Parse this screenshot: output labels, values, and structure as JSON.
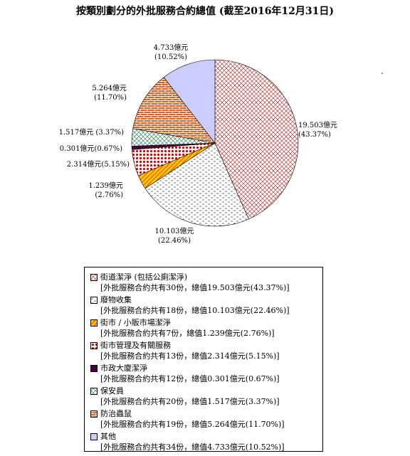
{
  "chart_data": {
    "type": "pie",
    "title": "按類別劃分的外批服務合約總值 (截至2016年12月31日)",
    "slices": [
      {
        "name": "街道潔淨 (包括公廁潔淨)",
        "value": 19.503,
        "percent": 43.37,
        "label_value": "19.503億元",
        "label_percent": "(43.37%)",
        "detail": "[外批服務合約共有30份，總值19.503億元(43.37%)]",
        "fill": "#ffffff",
        "stroke": "#c04040",
        "pattern": "crosshatch"
      },
      {
        "name": "廢物收集",
        "value": 10.103,
        "percent": 22.46,
        "label_value": "10.103億元",
        "label_percent": "(22.46%)",
        "detail": "[外批服務合約共有18份，總值10.103億元(22.46%)]",
        "fill": "#ffffff",
        "stroke": "#404040",
        "pattern": "dashes"
      },
      {
        "name": "街市 / 小販市場潔淨",
        "value": 1.239,
        "percent": 2.76,
        "label_value": "1.239億元",
        "label_percent": "(2.76%)",
        "detail": "[外批服務合約共有7份，總值1.239億元(2.76%)]",
        "fill": "#ffd700",
        "stroke": "#ff6600",
        "pattern": "diagonal"
      },
      {
        "name": "街市管理及有關服務",
        "value": 2.314,
        "percent": 5.15,
        "label_value": "2.314億元(5.15%)",
        "label_percent": "",
        "detail": "[外批服務合約共有13份，總值2.314億元(5.15%)]",
        "fill": "#ffffff",
        "stroke": "#e00000",
        "pattern": "dots"
      },
      {
        "name": "市政大廈潔淨",
        "value": 0.301,
        "percent": 0.67,
        "label_value": "0.301億元(0.67%)",
        "label_percent": "",
        "detail": "[外批服務合約共有12份，總值0.301億元(0.67%)]",
        "fill": "#4b0040",
        "stroke": "#4b0040",
        "pattern": "solid"
      },
      {
        "name": "保安員",
        "value": 1.517,
        "percent": 3.37,
        "label_value": "1.517億元  (3.37%)",
        "label_percent": "",
        "detail": "[外批服務合約共有20份，總值1.517億元(3.37%)]",
        "fill": "#ffffff",
        "stroke": "#2e8b57",
        "pattern": "diamond"
      },
      {
        "name": "防治蟲鼠",
        "value": 5.264,
        "percent": 11.7,
        "label_value": "5.264億元",
        "label_percent": "(11.70%)",
        "detail": "[外批服務合約共有19份，總值5.264億元(11.70%)]",
        "fill": "#e06020",
        "stroke": "#ffffff",
        "pattern": "brick"
      },
      {
        "name": "其他",
        "value": 4.733,
        "percent": 10.52,
        "label_value": "4.733億元",
        "label_percent": "(10.52%)",
        "detail": "[外批服務合約共有34份，總值4.733億元(10.52%)]",
        "fill": "#ccccff",
        "stroke": "#ccccff",
        "pattern": "solid"
      }
    ]
  }
}
